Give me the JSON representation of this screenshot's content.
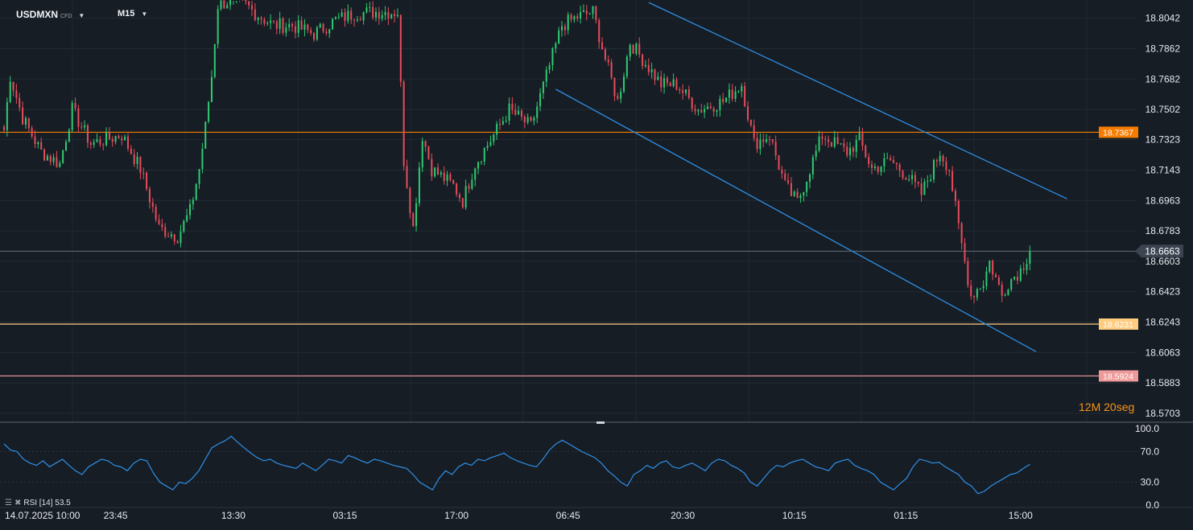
{
  "header": {
    "symbol": "USDMXN",
    "symbol_type": "CFD",
    "timeframe": "M15"
  },
  "timer": {
    "minutes": "12M",
    "seconds": "20",
    "seconds_unit": "seg"
  },
  "rsi": {
    "label": "RSI [14]",
    "value": "53.5"
  },
  "colors": {
    "background": "#161d25",
    "candle_up": "#2ecc71",
    "candle_down": "#e74c5a",
    "trendline": "#2f8fe6",
    "orange_level": "#f57c00",
    "yellow_level": "#ffcc80",
    "red_level": "#ef9a9a",
    "price_line": "#7d8894",
    "rsi_line": "#2f8fe6"
  },
  "chart_data": [
    {
      "type": "candlestick",
      "title": "USDMXN CFD M15",
      "ylim": [
        18.565,
        18.815
      ],
      "y_ticks": [
        "18.8042",
        "18.7862",
        "18.7682",
        "18.7502",
        "18.7323",
        "18.7143",
        "18.6963",
        "18.6783",
        "18.6603",
        "18.6423",
        "18.6243",
        "18.6063",
        "18.5883",
        "18.5703"
      ],
      "y_tick_values": [
        18.8042,
        18.7862,
        18.7682,
        18.7502,
        18.7323,
        18.7143,
        18.6963,
        18.6783,
        18.6603,
        18.6423,
        18.6243,
        18.6063,
        18.5883,
        18.5703
      ],
      "x_ticks": [
        "14.07.2025  10:00",
        "23:45",
        "13:30",
        "03:15",
        "17:00",
        "06:45",
        "20:30",
        "10:15",
        "01:15",
        "15:00"
      ],
      "x_tick_index": [
        12,
        36,
        74,
        110,
        146,
        182,
        219,
        255,
        291,
        328
      ],
      "bar_count": 340,
      "current_price": {
        "label": "18.6663",
        "value": 18.6663
      },
      "levels": [
        {
          "label": "18.7367",
          "value": 18.7367,
          "color": "#f57c00"
        },
        {
          "label": "18.6231",
          "value": 18.6231,
          "color": "#ffcc80"
        },
        {
          "label": "18.5924",
          "value": 18.5924,
          "color": "#ef9a9a"
        }
      ],
      "trendlines": [
        {
          "from": {
            "index": 208,
            "price": 18.8135
          },
          "to": {
            "index": 343,
            "price": 18.6973
          }
        },
        {
          "from": {
            "index": 178,
            "price": 18.7622
          },
          "to": {
            "index": 333,
            "price": 18.6068
          }
        }
      ],
      "anchors": [
        {
          "index": 0,
          "price": 18.738
        },
        {
          "index": 2,
          "price": 18.77
        },
        {
          "index": 6,
          "price": 18.745
        },
        {
          "index": 12,
          "price": 18.725
        },
        {
          "index": 18,
          "price": 18.718
        },
        {
          "index": 22,
          "price": 18.75
        },
        {
          "index": 28,
          "price": 18.73
        },
        {
          "index": 38,
          "price": 18.735
        },
        {
          "index": 44,
          "price": 18.715
        },
        {
          "index": 50,
          "price": 18.68
        },
        {
          "index": 56,
          "price": 18.675
        },
        {
          "index": 60,
          "price": 18.69
        },
        {
          "index": 63,
          "price": 18.715
        },
        {
          "index": 65,
          "price": 18.74
        },
        {
          "index": 67,
          "price": 18.77
        },
        {
          "index": 69,
          "price": 18.812
        },
        {
          "index": 72,
          "price": 18.814
        },
        {
          "index": 78,
          "price": 18.812
        },
        {
          "index": 82,
          "price": 18.806
        },
        {
          "index": 87,
          "price": 18.8
        },
        {
          "index": 93,
          "price": 18.8
        },
        {
          "index": 100,
          "price": 18.795
        },
        {
          "index": 107,
          "price": 18.803
        },
        {
          "index": 113,
          "price": 18.807
        },
        {
          "index": 120,
          "price": 18.808
        },
        {
          "index": 127,
          "price": 18.808
        },
        {
          "index": 129,
          "price": 18.72
        },
        {
          "index": 132,
          "price": 18.68
        },
        {
          "index": 135,
          "price": 18.735
        },
        {
          "index": 138,
          "price": 18.715
        },
        {
          "index": 145,
          "price": 18.705
        },
        {
          "index": 148,
          "price": 18.696
        },
        {
          "index": 152,
          "price": 18.718
        },
        {
          "index": 158,
          "price": 18.735
        },
        {
          "index": 163,
          "price": 18.75
        },
        {
          "index": 170,
          "price": 18.74
        },
        {
          "index": 175,
          "price": 18.77
        },
        {
          "index": 180,
          "price": 18.8
        },
        {
          "index": 185,
          "price": 18.805
        },
        {
          "index": 190,
          "price": 18.808
        },
        {
          "index": 194,
          "price": 18.78
        },
        {
          "index": 198,
          "price": 18.755
        },
        {
          "index": 202,
          "price": 18.79
        },
        {
          "index": 206,
          "price": 18.78
        },
        {
          "index": 212,
          "price": 18.765
        },
        {
          "index": 217,
          "price": 18.765
        },
        {
          "index": 224,
          "price": 18.75
        },
        {
          "index": 232,
          "price": 18.755
        },
        {
          "index": 238,
          "price": 18.765
        },
        {
          "index": 242,
          "price": 18.73
        },
        {
          "index": 247,
          "price": 18.735
        },
        {
          "index": 252,
          "price": 18.705
        },
        {
          "index": 256,
          "price": 18.695
        },
        {
          "index": 260,
          "price": 18.715
        },
        {
          "index": 264,
          "price": 18.735
        },
        {
          "index": 268,
          "price": 18.73
        },
        {
          "index": 272,
          "price": 18.725
        },
        {
          "index": 276,
          "price": 18.732
        },
        {
          "index": 280,
          "price": 18.715
        },
        {
          "index": 286,
          "price": 18.72
        },
        {
          "index": 292,
          "price": 18.71
        },
        {
          "index": 296,
          "price": 18.7
        },
        {
          "index": 302,
          "price": 18.725
        },
        {
          "index": 305,
          "price": 18.715
        },
        {
          "index": 308,
          "price": 18.68
        },
        {
          "index": 312,
          "price": 18.64
        },
        {
          "index": 316,
          "price": 18.648
        },
        {
          "index": 318,
          "price": 18.66
        },
        {
          "index": 322,
          "price": 18.64
        },
        {
          "index": 324,
          "price": 18.648
        },
        {
          "index": 328,
          "price": 18.655
        },
        {
          "index": 331,
          "price": 18.6663
        }
      ]
    },
    {
      "type": "line",
      "title": "RSI [14]",
      "ylim": [
        0,
        100
      ],
      "y_ticks": [
        "100.0",
        "70.0",
        "30.0",
        "0.0"
      ],
      "y_tick_values": [
        100,
        70,
        30,
        0
      ],
      "series": [
        {
          "name": "RSI [14]",
          "values": [
            80,
            72,
            70,
            60,
            55,
            52,
            58,
            50,
            55,
            60,
            52,
            45,
            40,
            50,
            55,
            60,
            58,
            52,
            50,
            45,
            55,
            60,
            58,
            42,
            30,
            25,
            20,
            30,
            28,
            35,
            45,
            60,
            75,
            80,
            84,
            90,
            82,
            75,
            68,
            62,
            58,
            60,
            55,
            52,
            50,
            48,
            55,
            50,
            45,
            52,
            60,
            58,
            55,
            65,
            62,
            58,
            55,
            60,
            58,
            55,
            52,
            50,
            48,
            40,
            30,
            25,
            20,
            35,
            45,
            40,
            50,
            55,
            52,
            60,
            58,
            62,
            65,
            68,
            62,
            58,
            55,
            52,
            50,
            60,
            72,
            80,
            85,
            80,
            75,
            70,
            66,
            62,
            55,
            45,
            38,
            30,
            25,
            40,
            45,
            52,
            48,
            55,
            58,
            50,
            48,
            52,
            55,
            50,
            45,
            55,
            60,
            58,
            52,
            48,
            42,
            30,
            25,
            35,
            45,
            52,
            50,
            55,
            58,
            60,
            55,
            50,
            48,
            45,
            55,
            58,
            60,
            52,
            48,
            45,
            40,
            30,
            25,
            20,
            28,
            35,
            50,
            60,
            58,
            55,
            56,
            50,
            45,
            40,
            30,
            25,
            15,
            18,
            25,
            30,
            35,
            40,
            42,
            48,
            53.5
          ]
        }
      ]
    }
  ]
}
